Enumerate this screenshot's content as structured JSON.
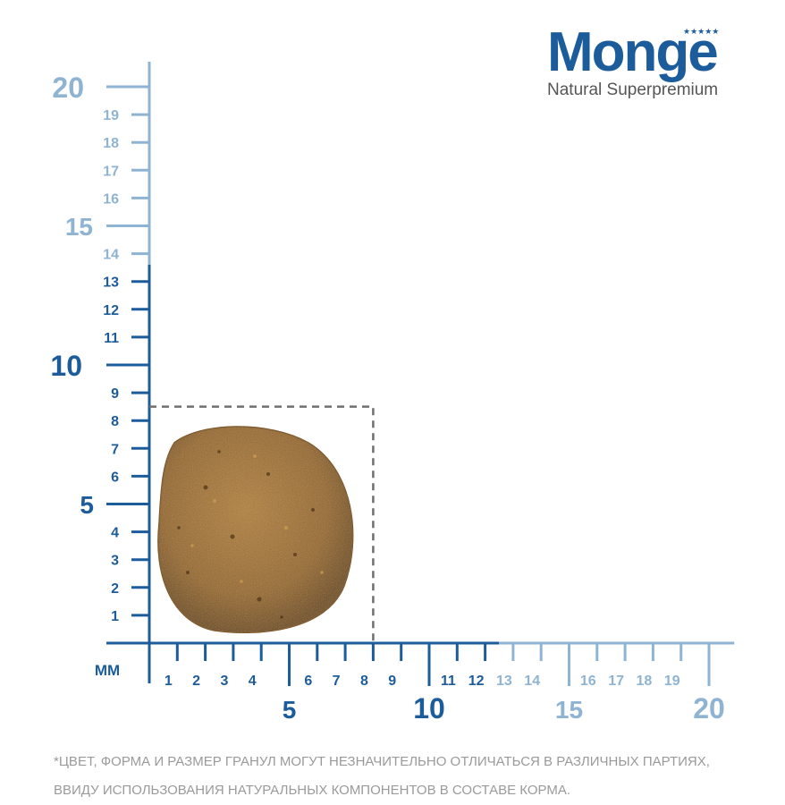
{
  "brand": {
    "name": "Monge",
    "tagline": "Natural Superpremium"
  },
  "scale": {
    "unit_label": "MM",
    "y_labels_small_dark": [
      "1",
      "2",
      "3",
      "4",
      "6",
      "7",
      "8",
      "9",
      "11",
      "12",
      "13"
    ],
    "y_labels_small_light": [
      "14",
      "16",
      "17",
      "18",
      "19"
    ],
    "y_labels_big": [
      "5",
      "10",
      "15",
      "20"
    ],
    "x_labels_small_dark": [
      "1",
      "2",
      "3",
      "4",
      "6",
      "7",
      "8",
      "9",
      "11",
      "12"
    ],
    "x_labels_small_light": [
      "13",
      "14",
      "16",
      "17",
      "18",
      "19"
    ],
    "x_labels_big": [
      "5",
      "10",
      "15",
      "20"
    ],
    "colors": {
      "dark": "#1d5c9b",
      "light": "#8fb3d3",
      "dashed": "#6f6f6f",
      "kibble": "#9a6c2e"
    }
  },
  "kibble": {
    "width_mm": 8,
    "height_mm": 8.5
  },
  "footnote": {
    "line1": "*ЦВЕТ, ФОРМА И РАЗМЕР ГРАНУЛ МОГУТ НЕЗНАЧИТЕЛЬНО ОТЛИЧАТЬСЯ В РАЗЛИЧНЫХ ПАРТИЯХ,",
    "line2": "ВВИДУ ИСПОЛЬЗОВАНИЯ НАТУРАЛЬНЫХ КОМПОНЕНТОВ В СОСТАВЕ КОРМА."
  }
}
